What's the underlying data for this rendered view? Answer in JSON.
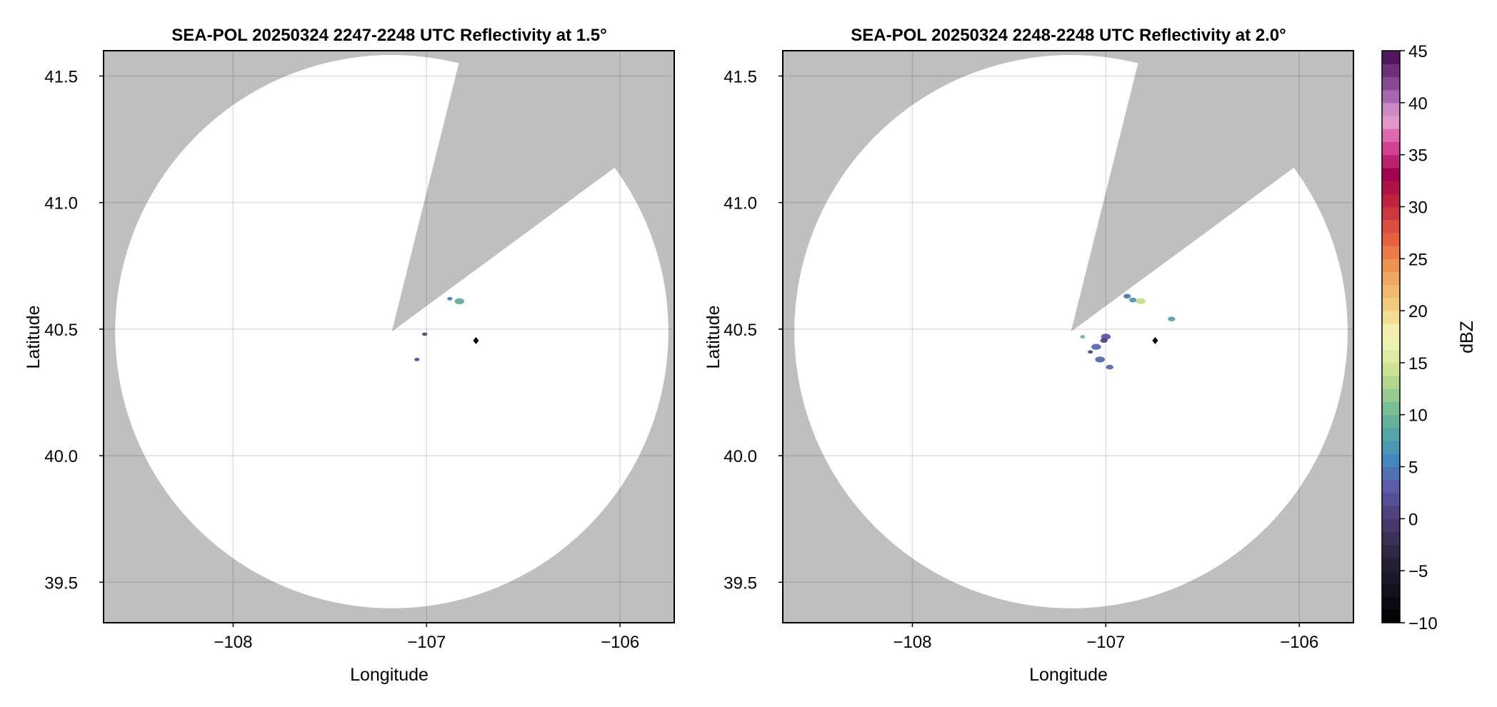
{
  "chart_data": [
    {
      "type": "heatmap",
      "title": "SEA-POL 20250324 2247-2248 UTC Reflectivity at 1.5°",
      "xlabel": "Longitude",
      "ylabel": "Latitude",
      "xlim": [
        -108.67,
        -105.72
      ],
      "ylim": [
        39.34,
        41.6
      ],
      "xticks": [
        -108,
        -107,
        -106
      ],
      "xtick_labels": [
        "−108",
        "−107",
        "−106"
      ],
      "yticks": [
        39.5,
        40.0,
        40.5,
        41.0,
        41.5
      ],
      "ytick_labels": [
        "39.5",
        "40.0",
        "40.5",
        "41.0",
        "41.5"
      ],
      "grid": true,
      "coverage": {
        "center": [
          -107.18,
          40.49
        ],
        "radius_lon_deg": 1.43,
        "radius_lat_deg": 1.093
      },
      "blocked_sector": [
        [
          -107.18,
          40.49
        ],
        [
          -106.84,
          41.53
        ],
        [
          -106.06,
          41.12
        ]
      ],
      "marker": {
        "lon": -106.745,
        "lat": 40.455,
        "shape": "diamond",
        "color": "#000000"
      },
      "echoes": [
        {
          "lon": -106.83,
          "lat": 40.61,
          "dbz": 9,
          "size": 3
        },
        {
          "lon": -106.88,
          "lat": 40.62,
          "dbz": 5,
          "size": 1
        },
        {
          "lon": -107.01,
          "lat": 40.48,
          "dbz": 1,
          "size": 1
        },
        {
          "lon": -107.05,
          "lat": 40.38,
          "dbz": 2,
          "size": 1
        }
      ]
    },
    {
      "type": "heatmap",
      "title": "SEA-POL 20250324 2248-2248 UTC Reflectivity at 2.0°",
      "xlabel": "Longitude",
      "ylabel": "Latitude",
      "xlim": [
        -108.67,
        -105.72
      ],
      "ylim": [
        39.34,
        41.6
      ],
      "xticks": [
        -108,
        -107,
        -106
      ],
      "xtick_labels": [
        "−108",
        "−107",
        "−106"
      ],
      "yticks": [
        39.5,
        40.0,
        40.5,
        41.0,
        41.5
      ],
      "ytick_labels": [
        "39.5",
        "40.0",
        "40.5",
        "41.0",
        "41.5"
      ],
      "grid": true,
      "coverage": {
        "center": [
          -107.18,
          40.49
        ],
        "radius_lon_deg": 1.43,
        "radius_lat_deg": 1.093
      },
      "blocked_sector": [
        [
          -107.18,
          40.49
        ],
        [
          -106.84,
          41.53
        ],
        [
          -106.06,
          41.12
        ]
      ],
      "marker": {
        "lon": -106.745,
        "lat": 40.455,
        "shape": "diamond",
        "color": "#000000"
      },
      "echoes": [
        {
          "lon": -106.89,
          "lat": 40.63,
          "dbz": 5,
          "size": 2
        },
        {
          "lon": -106.86,
          "lat": 40.615,
          "dbz": 7,
          "size": 2
        },
        {
          "lon": -106.82,
          "lat": 40.61,
          "dbz": 14,
          "size": 3
        },
        {
          "lon": -106.66,
          "lat": 40.54,
          "dbz": 8,
          "size": 2
        },
        {
          "lon": -107.0,
          "lat": 40.47,
          "dbz": 3,
          "size": 3
        },
        {
          "lon": -107.01,
          "lat": 40.455,
          "dbz": 1,
          "size": 2
        },
        {
          "lon": -107.05,
          "lat": 40.43,
          "dbz": 4,
          "size": 3
        },
        {
          "lon": -107.08,
          "lat": 40.41,
          "dbz": 1,
          "size": 1
        },
        {
          "lon": -107.03,
          "lat": 40.38,
          "dbz": 4,
          "size": 3
        },
        {
          "lon": -106.98,
          "lat": 40.35,
          "dbz": 4,
          "size": 2
        },
        {
          "lon": -107.12,
          "lat": 40.47,
          "dbz": 10,
          "size": 1
        }
      ]
    }
  ],
  "colorbar": {
    "label": "dBZ",
    "range": [
      -10,
      45
    ],
    "ticks": [
      -10,
      -5,
      0,
      5,
      10,
      15,
      20,
      25,
      30,
      35,
      40,
      45
    ],
    "tick_labels": [
      "−10",
      "−5",
      "0",
      "5",
      "10",
      "15",
      "20",
      "25",
      "30",
      "35",
      "40",
      "45"
    ],
    "colormap": [
      [
        -10,
        "#000000"
      ],
      [
        -5,
        "#1f1b2c"
      ],
      [
        0,
        "#4b3d72"
      ],
      [
        3,
        "#5d5aaa"
      ],
      [
        6,
        "#3f8fbd"
      ],
      [
        10,
        "#6bb894"
      ],
      [
        14,
        "#c8e08e"
      ],
      [
        17.5,
        "#f6f6b8"
      ],
      [
        20,
        "#f0d486"
      ],
      [
        24,
        "#ee9a55"
      ],
      [
        27,
        "#e8603f"
      ],
      [
        30,
        "#c92c3f"
      ],
      [
        33,
        "#a0004e"
      ],
      [
        36,
        "#d94b9a"
      ],
      [
        38.5,
        "#e6a2d2"
      ],
      [
        41,
        "#9b5aa8"
      ],
      [
        45,
        "#420a4e"
      ]
    ],
    "background_color": "#bfbfbf"
  }
}
